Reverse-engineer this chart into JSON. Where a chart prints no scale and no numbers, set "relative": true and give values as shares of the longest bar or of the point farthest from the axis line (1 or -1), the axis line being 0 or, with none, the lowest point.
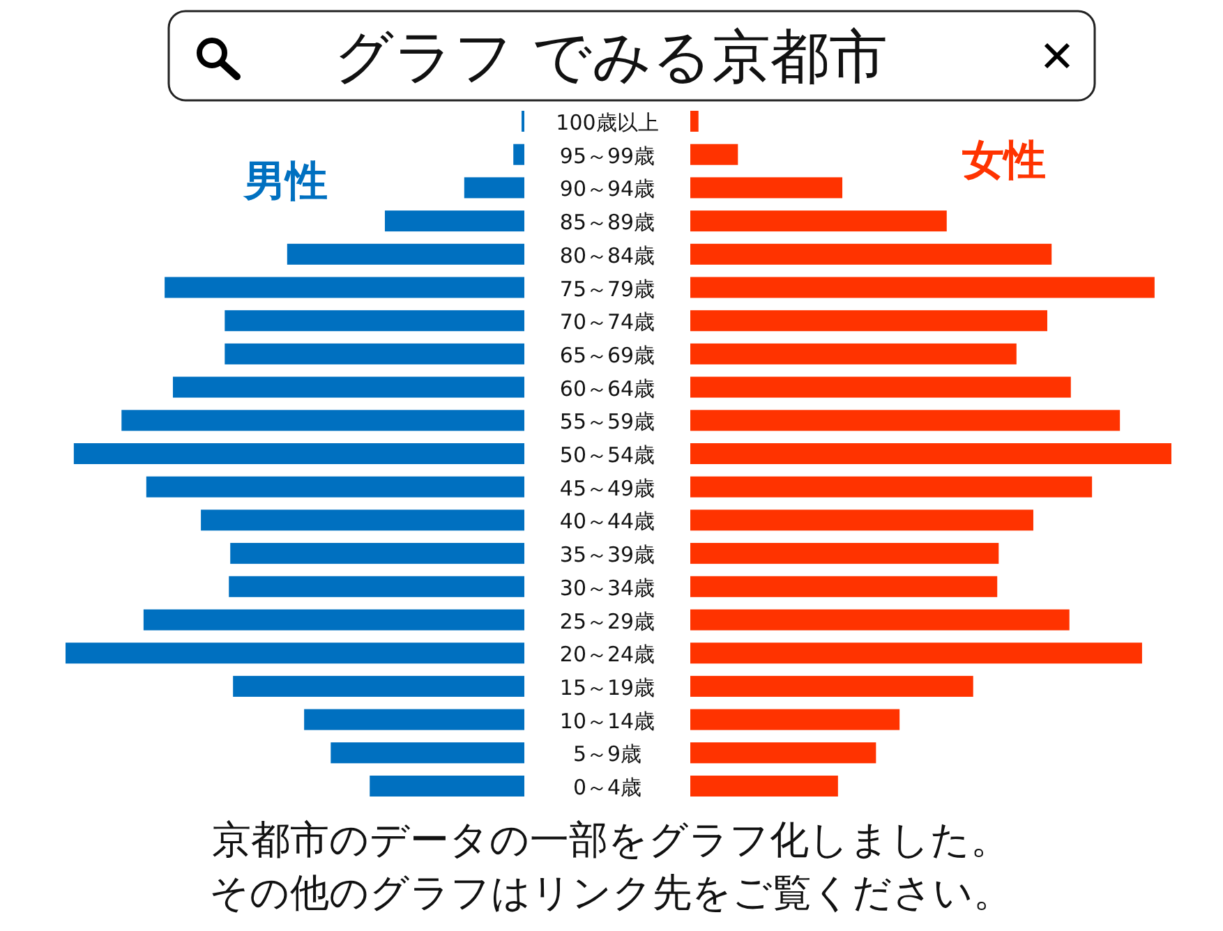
{
  "chart_data": [
    {
      "type": "bar",
      "orientation": "horizontal",
      "relative": true,
      "title": "グラフ でみる京都市",
      "categories": [
        "100歳以上",
        "95～99歳",
        "90～94歳",
        "85～89歳",
        "80～84歳",
        "75～79歳",
        "70～74歳",
        "65～69歳",
        "60～64歳",
        "55～59歳",
        "50～54歳",
        "45～49歳",
        "40～44歳",
        "35～39歳",
        "30～34歳",
        "25～29歳",
        "20～24歳",
        "15～19歳",
        "10～14歳",
        "5～9歳",
        "0～4歳"
      ],
      "series": [
        {
          "name": "男性",
          "color": "#0070c0",
          "values": [
            -0.006,
            -0.024,
            -0.131,
            -0.304,
            -0.517,
            -0.784,
            -0.653,
            -0.653,
            -0.766,
            -0.878,
            -0.982,
            -0.824,
            -0.705,
            -0.641,
            -0.644,
            -0.83,
            -1.0,
            -0.635,
            -0.48,
            -0.422,
            -0.337
          ]
        }
      ],
      "annotations": [
        "京都市のデータの一部をグラフ化しました。",
        "その他のグラフはリンク先をご覧ください。"
      ]
    },
    {
      "type": "bar",
      "orientation": "horizontal",
      "relative": true,
      "categories": [
        null,
        null,
        null,
        null,
        null,
        null,
        null,
        null,
        null,
        null,
        null,
        null,
        null,
        null,
        null,
        null,
        null,
        null,
        null,
        null,
        null
      ],
      "series": [
        {
          "name": "女性",
          "color": "#ff3300",
          "values": [
            0.017,
            0.099,
            0.316,
            0.533,
            0.751,
            0.965,
            0.742,
            0.678,
            0.791,
            0.893,
            1.0,
            0.835,
            0.713,
            0.641,
            0.638,
            0.788,
            0.939,
            0.588,
            0.435,
            0.386,
            0.307
          ]
        }
      ]
    }
  ]
}
